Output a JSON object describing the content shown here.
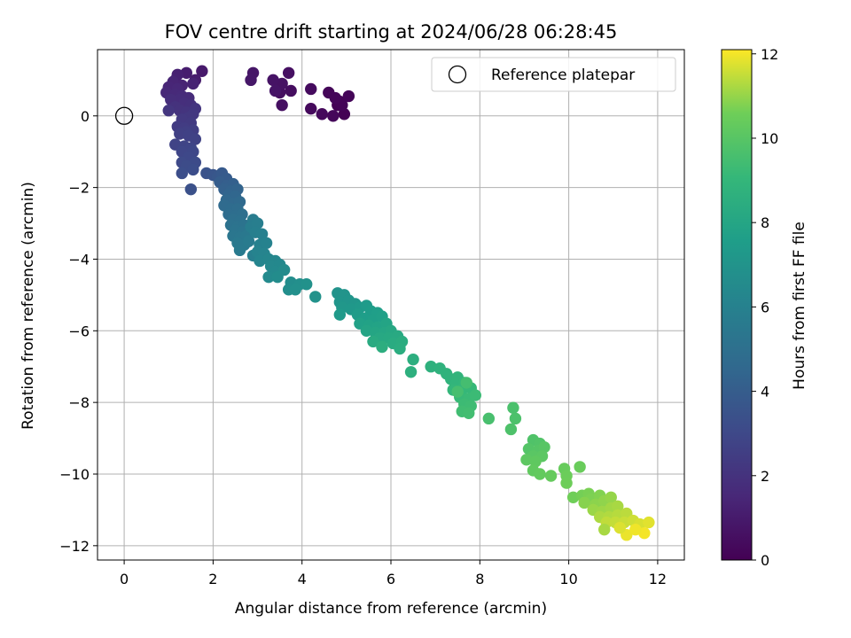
{
  "chart_data": {
    "type": "scatter",
    "title": "FOV centre drift starting at 2024/06/28 06:28:45",
    "xlabel": "Angular distance from reference (arcmin)",
    "ylabel": "Rotation from reference (arcmin)",
    "xlim": [
      -0.6,
      12.6
    ],
    "ylim": [
      -12.4,
      1.85
    ],
    "xticks": [
      0,
      2,
      4,
      6,
      8,
      10,
      12
    ],
    "yticks": [
      -12,
      -10,
      -8,
      -6,
      -4,
      -2,
      0
    ],
    "xtick_labels": [
      "0",
      "2",
      "4",
      "6",
      "8",
      "10",
      "12"
    ],
    "ytick_labels": [
      "−12",
      "−10",
      "−8",
      "−6",
      "−4",
      "−2",
      "0"
    ],
    "grid": true,
    "legend": {
      "position": "top-right",
      "entries": [
        "Reference platepar"
      ]
    },
    "reference_point": {
      "x": 0,
      "y": 0,
      "label": "Reference platepar"
    },
    "colorbar": {
      "label": "Hours from first FF file",
      "colormap": "viridis",
      "range": [
        0,
        12.1
      ],
      "ticks": [
        0,
        2,
        4,
        6,
        8,
        10,
        12
      ],
      "tick_labels": [
        "0",
        "2",
        "4",
        "6",
        "8",
        "10",
        "12"
      ]
    },
    "series": [
      {
        "values": [
          [
            4.95,
            0.05,
            0.02
          ],
          [
            4.8,
            0.3,
            0.05
          ],
          [
            4.85,
            0.4,
            0.1
          ],
          [
            4.9,
            0.3,
            0.13
          ],
          [
            5.05,
            0.55,
            0.15
          ],
          [
            4.6,
            0.65,
            0.18
          ],
          [
            4.75,
            0.5,
            0.2
          ],
          [
            4.7,
            0.0,
            0.25
          ],
          [
            4.45,
            0.05,
            0.3
          ],
          [
            4.2,
            0.2,
            0.35
          ],
          [
            4.2,
            0.75,
            0.4
          ],
          [
            3.75,
            0.7,
            0.45
          ],
          [
            3.5,
            0.65,
            0.5
          ],
          [
            3.55,
            0.3,
            0.55
          ],
          [
            3.7,
            1.2,
            0.6
          ],
          [
            3.55,
            0.9,
            0.65
          ],
          [
            3.35,
            1.0,
            0.7
          ],
          [
            3.4,
            0.7,
            0.75
          ],
          [
            2.9,
            1.2,
            0.8
          ],
          [
            2.85,
            1.0,
            0.85
          ],
          [
            1.75,
            1.25,
            0.95
          ],
          [
            1.6,
            1.0,
            1.05
          ],
          [
            1.4,
            1.2,
            1.1
          ],
          [
            1.2,
            1.15,
            1.2
          ],
          [
            1.15,
            1.0,
            1.25
          ],
          [
            1.55,
            0.9,
            1.3
          ],
          [
            1.3,
            0.85,
            1.35
          ],
          [
            1.1,
            0.95,
            1.4
          ],
          [
            1.0,
            0.8,
            1.45
          ],
          [
            1.2,
            0.75,
            1.5
          ],
          [
            0.95,
            0.65,
            1.55
          ],
          [
            1.15,
            0.6,
            1.6
          ],
          [
            1.3,
            0.55,
            1.65
          ],
          [
            1.45,
            0.5,
            1.7
          ],
          [
            1.25,
            0.45,
            1.75
          ],
          [
            1.05,
            0.45,
            1.8
          ],
          [
            1.35,
            0.35,
            1.85
          ],
          [
            1.5,
            0.3,
            1.9
          ],
          [
            1.15,
            0.25,
            1.95
          ],
          [
            1.25,
            0.15,
            2.0
          ],
          [
            1.4,
            0.1,
            2.05
          ],
          [
            1.6,
            0.2,
            2.1
          ],
          [
            1.0,
            0.15,
            2.15
          ],
          [
            1.55,
            0.05,
            2.2
          ],
          [
            1.45,
            -0.05,
            2.25
          ],
          [
            1.3,
            -0.1,
            2.3
          ],
          [
            1.5,
            -0.2,
            2.35
          ],
          [
            1.2,
            -0.3,
            2.4
          ],
          [
            1.35,
            -0.35,
            2.45
          ],
          [
            1.55,
            -0.4,
            2.5
          ],
          [
            1.4,
            -0.45,
            2.55
          ],
          [
            1.25,
            -0.5,
            2.6
          ],
          [
            1.45,
            -0.55,
            2.65
          ],
          [
            1.6,
            -0.65,
            2.7
          ],
          [
            1.15,
            -0.8,
            2.75
          ],
          [
            1.35,
            -0.85,
            2.8
          ],
          [
            1.5,
            -0.9,
            2.85
          ],
          [
            1.3,
            -1.0,
            2.9
          ],
          [
            1.55,
            -1.0,
            2.95
          ],
          [
            1.45,
            -1.15,
            3.0
          ],
          [
            1.3,
            -1.3,
            3.05
          ],
          [
            1.6,
            -1.3,
            3.1
          ],
          [
            1.4,
            -1.4,
            3.15
          ],
          [
            1.55,
            -1.5,
            3.2
          ],
          [
            1.3,
            -1.6,
            3.25
          ],
          [
            1.5,
            -2.05,
            3.4
          ],
          [
            1.85,
            -1.6,
            3.5
          ],
          [
            2.0,
            -1.65,
            3.6
          ],
          [
            2.1,
            -1.7,
            3.7
          ],
          [
            2.2,
            -1.6,
            3.8
          ],
          [
            2.3,
            -1.75,
            3.9
          ],
          [
            2.15,
            -1.85,
            4.0
          ],
          [
            2.3,
            -1.95,
            4.1
          ],
          [
            2.45,
            -1.9,
            4.15
          ],
          [
            2.25,
            -2.05,
            4.2
          ],
          [
            2.4,
            -2.1,
            4.3
          ],
          [
            2.55,
            -2.05,
            4.35
          ],
          [
            2.35,
            -2.2,
            4.4
          ],
          [
            2.5,
            -2.25,
            4.5
          ],
          [
            2.3,
            -2.35,
            4.55
          ],
          [
            2.45,
            -2.45,
            4.6
          ],
          [
            2.6,
            -2.4,
            4.65
          ],
          [
            2.25,
            -2.5,
            4.7
          ],
          [
            2.4,
            -2.6,
            4.75
          ],
          [
            2.55,
            -2.6,
            4.8
          ],
          [
            2.35,
            -2.75,
            4.85
          ],
          [
            2.5,
            -2.8,
            4.9
          ],
          [
            2.65,
            -2.75,
            4.95
          ],
          [
            2.45,
            -2.9,
            5.0
          ],
          [
            2.6,
            -2.95,
            5.05
          ],
          [
            2.4,
            -3.05,
            5.1
          ],
          [
            2.55,
            -3.1,
            5.15
          ],
          [
            2.7,
            -3.05,
            5.2
          ],
          [
            2.5,
            -3.2,
            5.25
          ],
          [
            2.65,
            -3.25,
            5.3
          ],
          [
            2.45,
            -3.35,
            5.35
          ],
          [
            2.6,
            -3.4,
            5.4
          ],
          [
            2.75,
            -3.35,
            5.45
          ],
          [
            2.55,
            -3.55,
            5.5
          ],
          [
            2.7,
            -3.6,
            5.55
          ],
          [
            2.6,
            -3.75,
            5.6
          ],
          [
            2.8,
            -3.5,
            5.65
          ],
          [
            2.9,
            -2.9,
            5.7
          ],
          [
            2.85,
            -3.1,
            5.75
          ],
          [
            3.0,
            -3.0,
            5.8
          ],
          [
            2.95,
            -3.25,
            5.85
          ],
          [
            2.9,
            -3.9,
            5.9
          ],
          [
            3.1,
            -3.3,
            5.95
          ],
          [
            3.05,
            -3.6,
            6.0
          ],
          [
            3.2,
            -3.55,
            6.05
          ],
          [
            3.0,
            -3.8,
            6.1
          ],
          [
            3.15,
            -3.85,
            6.15
          ],
          [
            3.05,
            -4.05,
            6.2
          ],
          [
            3.25,
            -4.0,
            6.25
          ],
          [
            3.4,
            -4.05,
            6.3
          ],
          [
            3.3,
            -4.2,
            6.35
          ],
          [
            3.5,
            -4.15,
            6.4
          ],
          [
            3.4,
            -4.35,
            6.45
          ],
          [
            3.25,
            -4.5,
            6.5
          ],
          [
            3.6,
            -4.3,
            6.55
          ],
          [
            3.45,
            -4.5,
            6.6
          ],
          [
            3.75,
            -4.65,
            6.65
          ],
          [
            3.7,
            -4.85,
            6.7
          ],
          [
            3.95,
            -4.7,
            6.75
          ],
          [
            3.85,
            -4.85,
            6.8
          ],
          [
            4.1,
            -4.7,
            6.85
          ],
          [
            4.3,
            -5.05,
            6.9
          ],
          [
            4.8,
            -4.95,
            6.95
          ],
          [
            4.95,
            -5.0,
            7.0
          ],
          [
            4.85,
            -5.2,
            7.05
          ],
          [
            5.05,
            -5.15,
            7.1
          ],
          [
            5.2,
            -5.25,
            7.15
          ],
          [
            4.9,
            -5.35,
            7.2
          ],
          [
            5.1,
            -5.4,
            7.25
          ],
          [
            5.3,
            -5.35,
            7.3
          ],
          [
            4.85,
            -5.55,
            7.35
          ],
          [
            5.45,
            -5.3,
            7.4
          ],
          [
            5.25,
            -5.55,
            7.45
          ],
          [
            5.55,
            -5.45,
            7.5
          ],
          [
            5.4,
            -5.65,
            7.55
          ],
          [
            5.7,
            -5.5,
            7.6
          ],
          [
            5.6,
            -5.7,
            7.65
          ],
          [
            5.8,
            -5.6,
            7.7
          ],
          [
            5.3,
            -5.8,
            7.75
          ],
          [
            5.5,
            -5.85,
            7.8
          ],
          [
            5.7,
            -5.9,
            7.85
          ],
          [
            5.9,
            -5.8,
            7.9
          ],
          [
            5.45,
            -6.0,
            7.95
          ],
          [
            5.65,
            -6.05,
            8.0
          ],
          [
            5.85,
            -6.05,
            8.05
          ],
          [
            6.0,
            -6.0,
            8.1
          ],
          [
            5.75,
            -6.2,
            8.15
          ],
          [
            5.95,
            -6.2,
            8.2
          ],
          [
            6.15,
            -6.15,
            8.25
          ],
          [
            5.6,
            -6.3,
            8.3
          ],
          [
            6.05,
            -6.35,
            8.35
          ],
          [
            6.25,
            -6.3,
            8.4
          ],
          [
            6.2,
            -6.5,
            8.45
          ],
          [
            5.8,
            -6.45,
            8.5
          ],
          [
            6.5,
            -6.8,
            8.55
          ],
          [
            6.45,
            -7.15,
            8.6
          ],
          [
            6.9,
            -7.0,
            8.65
          ],
          [
            7.1,
            -7.05,
            8.7
          ],
          [
            7.25,
            -7.2,
            8.75
          ],
          [
            7.35,
            -7.35,
            8.8
          ],
          [
            7.5,
            -7.3,
            8.85
          ],
          [
            7.45,
            -7.5,
            8.9
          ],
          [
            7.65,
            -7.45,
            8.95
          ],
          [
            7.4,
            -7.65,
            9.0
          ],
          [
            7.6,
            -7.65,
            9.05
          ],
          [
            7.8,
            -7.6,
            9.1
          ],
          [
            7.55,
            -7.85,
            9.15
          ],
          [
            7.75,
            -7.9,
            9.2
          ],
          [
            7.9,
            -7.8,
            9.25
          ],
          [
            7.65,
            -8.05,
            9.3
          ],
          [
            7.8,
            -8.1,
            9.35
          ],
          [
            7.6,
            -8.25,
            9.4
          ],
          [
            7.75,
            -8.3,
            9.45
          ],
          [
            7.7,
            -7.45,
            9.5
          ],
          [
            7.5,
            -7.7,
            9.55
          ],
          [
            8.2,
            -8.45,
            9.6
          ],
          [
            8.75,
            -8.15,
            9.65
          ],
          [
            8.8,
            -8.45,
            9.7
          ],
          [
            8.7,
            -8.75,
            9.75
          ],
          [
            9.2,
            -9.05,
            9.8
          ],
          [
            9.35,
            -9.15,
            9.85
          ],
          [
            9.1,
            -9.3,
            9.9
          ],
          [
            9.3,
            -9.35,
            9.95
          ],
          [
            9.45,
            -9.25,
            10.0
          ],
          [
            9.2,
            -9.5,
            10.05
          ],
          [
            9.4,
            -9.5,
            10.1
          ],
          [
            9.05,
            -9.6,
            10.15
          ],
          [
            9.25,
            -9.65,
            10.2
          ],
          [
            9.2,
            -9.9,
            10.25
          ],
          [
            9.35,
            -10.0,
            10.3
          ],
          [
            9.6,
            -10.05,
            10.35
          ],
          [
            9.9,
            -9.85,
            10.4
          ],
          [
            10.25,
            -9.8,
            10.45
          ],
          [
            9.95,
            -10.05,
            10.5
          ],
          [
            9.95,
            -10.25,
            10.55
          ],
          [
            10.1,
            -10.65,
            10.6
          ],
          [
            10.3,
            -10.6,
            10.65
          ],
          [
            10.45,
            -10.55,
            10.7
          ],
          [
            10.5,
            -10.7,
            10.75
          ],
          [
            10.7,
            -10.6,
            10.8
          ],
          [
            10.35,
            -10.8,
            10.85
          ],
          [
            10.6,
            -10.85,
            10.9
          ],
          [
            10.8,
            -10.75,
            10.95
          ],
          [
            10.95,
            -10.65,
            11.0
          ],
          [
            10.55,
            -11.0,
            11.05
          ],
          [
            10.75,
            -11.05,
            11.1
          ],
          [
            10.95,
            -10.95,
            11.15
          ],
          [
            11.1,
            -10.9,
            11.2
          ],
          [
            10.7,
            -11.2,
            11.25
          ],
          [
            10.9,
            -11.2,
            11.3
          ],
          [
            11.1,
            -11.15,
            11.35
          ],
          [
            11.3,
            -11.1,
            11.4
          ],
          [
            10.85,
            -11.35,
            11.45
          ],
          [
            11.05,
            -11.35,
            11.5
          ],
          [
            11.25,
            -11.35,
            11.55
          ],
          [
            11.45,
            -11.3,
            11.6
          ],
          [
            11.6,
            -11.4,
            11.7
          ],
          [
            11.8,
            -11.35,
            11.8
          ],
          [
            11.3,
            -11.7,
            11.9
          ],
          [
            11.7,
            -11.65,
            12.0
          ],
          [
            10.8,
            -11.55,
            11.2
          ],
          [
            11.5,
            -11.55,
            11.95
          ],
          [
            11.15,
            -11.5,
            11.75
          ]
        ]
      }
    ]
  }
}
